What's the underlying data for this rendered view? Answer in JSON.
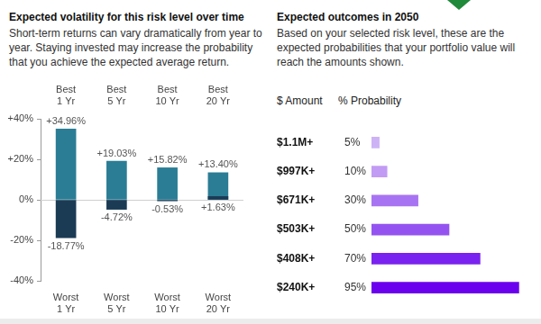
{
  "chart_data": [
    {
      "type": "bar",
      "title": "Expected volatility for this risk level over time",
      "subtitle": "Short-term returns can vary dramatically from year to year. Staying invested may increase the probability that you achieve the expected average return.",
      "categories": [
        "1 Yr",
        "5 Yr",
        "10 Yr",
        "20 Yr"
      ],
      "series": [
        {
          "name": "Best",
          "color": "#2a7d95",
          "values": [
            34.96,
            19.03,
            15.82,
            13.4
          ],
          "value_labels": [
            "+34.96%",
            "+19.03%",
            "+15.82%",
            "+13.40%"
          ]
        },
        {
          "name": "Worst",
          "color": "#1b3b55",
          "values": [
            -18.77,
            -4.72,
            -0.53,
            1.63
          ],
          "value_labels": [
            "-18.77%",
            "-4.72%",
            "-0.53%",
            "+1.63%"
          ]
        }
      ],
      "ylim": [
        -40,
        40
      ],
      "yticks": [
        {
          "value": -40,
          "label": "-40%"
        },
        {
          "value": -20,
          "label": "-20%"
        },
        {
          "value": 0,
          "label": "0%"
        },
        {
          "value": 20,
          "label": "+20%"
        },
        {
          "value": 40,
          "label": "+40%"
        }
      ],
      "grid": false,
      "data_labels": true
    },
    {
      "type": "bar",
      "orientation": "horizontal",
      "title": "Expected outcomes in 2050",
      "subtitle": "Based on your selected risk level, these are the expected probabilities that your portfolio value will reach the amounts shown.",
      "ylabel": "$ Amount",
      "xlabel": "% Probability",
      "categories": [
        "$1.1M+",
        "$997K+",
        "$671K+",
        "$503K+",
        "$408K+",
        "$240K+"
      ],
      "values": [
        5,
        10,
        30,
        50,
        70,
        95
      ],
      "value_labels": [
        "5%",
        "10%",
        "30%",
        "50%",
        "70%",
        "95%"
      ],
      "colors": [
        "#cdb3f6",
        "#c29bf5",
        "#a873f2",
        "#9453f1",
        "#7a22ef",
        "#6a00ee"
      ],
      "xlim": [
        0,
        100
      ],
      "grid": false,
      "tick_labels": "y",
      "data_labels": true
    }
  ]
}
